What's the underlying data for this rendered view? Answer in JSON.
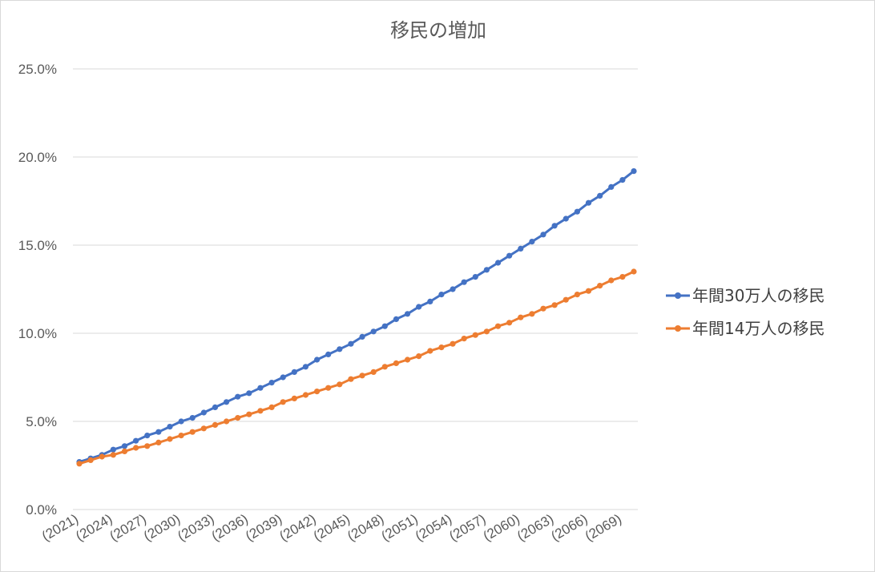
{
  "chart_data": {
    "type": "line",
    "title": "移民の増加",
    "xlabel": "",
    "ylabel": "",
    "x": [
      2021,
      2022,
      2023,
      2024,
      2025,
      2026,
      2027,
      2028,
      2029,
      2030,
      2031,
      2032,
      2033,
      2034,
      2035,
      2036,
      2037,
      2038,
      2039,
      2040,
      2041,
      2042,
      2043,
      2044,
      2045,
      2046,
      2047,
      2048,
      2049,
      2050,
      2051,
      2052,
      2053,
      2054,
      2055,
      2056,
      2057,
      2058,
      2059,
      2060,
      2061,
      2062,
      2063,
      2064,
      2065,
      2066,
      2067,
      2068,
      2069,
      2070
    ],
    "x_tick_labels": [
      "(2021)",
      "(2024)",
      "(2027)",
      "(2030)",
      "(2033)",
      "(2036)",
      "(2039)",
      "(2042)",
      "(2045)",
      "(2048)",
      "(2051)",
      "(2054)",
      "(2057)",
      "(2060)",
      "(2063)",
      "(2066)",
      "(2069)"
    ],
    "x_tick_indices": [
      0,
      3,
      6,
      9,
      12,
      15,
      18,
      21,
      24,
      27,
      30,
      33,
      36,
      39,
      42,
      45,
      48
    ],
    "y_tick_labels": [
      "0.0%",
      "5.0%",
      "10.0%",
      "15.0%",
      "20.0%",
      "25.0%"
    ],
    "ylim": [
      0,
      25
    ],
    "y_unit": "%",
    "grid": true,
    "legend_position": "right",
    "series": [
      {
        "name": "年間30万人の移民",
        "color": "#4472c4",
        "values": [
          2.7,
          2.9,
          3.1,
          3.4,
          3.6,
          3.9,
          4.2,
          4.4,
          4.7,
          5.0,
          5.2,
          5.5,
          5.8,
          6.1,
          6.4,
          6.6,
          6.9,
          7.2,
          7.5,
          7.8,
          8.1,
          8.5,
          8.8,
          9.1,
          9.4,
          9.8,
          10.1,
          10.4,
          10.8,
          11.1,
          11.5,
          11.8,
          12.2,
          12.5,
          12.9,
          13.2,
          13.6,
          14.0,
          14.4,
          14.8,
          15.2,
          15.6,
          16.1,
          16.5,
          16.9,
          17.4,
          17.8,
          18.3,
          18.7,
          19.2
        ]
      },
      {
        "name": "年間14万人の移民",
        "color": "#ed7d31",
        "values": [
          2.6,
          2.8,
          3.0,
          3.1,
          3.3,
          3.5,
          3.6,
          3.8,
          4.0,
          4.2,
          4.4,
          4.6,
          4.8,
          5.0,
          5.2,
          5.4,
          5.6,
          5.8,
          6.1,
          6.3,
          6.5,
          6.7,
          6.9,
          7.1,
          7.4,
          7.6,
          7.8,
          8.1,
          8.3,
          8.5,
          8.7,
          9.0,
          9.2,
          9.4,
          9.7,
          9.9,
          10.1,
          10.4,
          10.6,
          10.9,
          11.1,
          11.4,
          11.6,
          11.9,
          12.2,
          12.4,
          12.7,
          13.0,
          13.2,
          13.5
        ]
      }
    ]
  }
}
